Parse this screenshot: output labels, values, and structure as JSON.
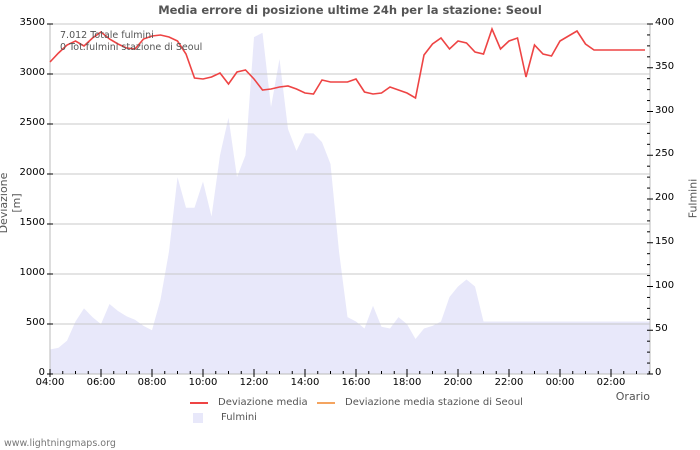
{
  "title": "Media errore di posizione ultime 24h per la stazione: Seoul",
  "info": {
    "total_strikes": "7.012 Totale fulmini",
    "station_strikes": "0 Tot.fulmini stazione di Seoul"
  },
  "axes": {
    "y_left_label": "Deviazione  [m]",
    "y_right_label": "Fulmini",
    "x_label": "Orario",
    "y_left_ticks": [
      "0",
      "500",
      "1000",
      "1500",
      "2000",
      "2500",
      "3000",
      "3500"
    ],
    "y_right_ticks": [
      "0",
      "50",
      "100",
      "150",
      "200",
      "250",
      "300",
      "350",
      "400"
    ],
    "x_ticks": [
      "04:00",
      "06:00",
      "08:00",
      "10:00",
      "12:00",
      "14:00",
      "16:00",
      "18:00",
      "20:00",
      "22:00",
      "00:00",
      "02:00"
    ]
  },
  "legend": {
    "deviation": "Deviazione media",
    "station_deviation": "Deviazione media stazione di Seoul",
    "strikes": "Fulmini"
  },
  "colors": {
    "deviation": "#ee4444",
    "station_deviation": "#f4a460",
    "strikes": "#e8e8fa",
    "grid": "#c8c8c8"
  },
  "footer": "www.lightningmaps.org",
  "chart_data": {
    "type": "line",
    "title": "Media errore di posizione ultime 24h per la stazione: Seoul",
    "xlabel": "Orario",
    "ylabel": "Deviazione [m]",
    "ylabel_right": "Fulmini",
    "ylim": [
      0,
      3500
    ],
    "ylim_right": [
      0,
      400
    ],
    "grid": true,
    "legend_position": "bottom",
    "x": [
      "04:00",
      "04:20",
      "04:40",
      "05:00",
      "05:20",
      "05:40",
      "06:00",
      "06:20",
      "06:40",
      "07:00",
      "07:20",
      "07:40",
      "08:00",
      "08:20",
      "08:40",
      "09:00",
      "09:20",
      "09:40",
      "10:00",
      "10:20",
      "10:40",
      "11:00",
      "11:20",
      "11:40",
      "12:00",
      "12:20",
      "12:40",
      "13:00",
      "13:20",
      "13:40",
      "14:00",
      "14:20",
      "14:40",
      "15:00",
      "15:20",
      "15:40",
      "16:00",
      "16:20",
      "16:40",
      "17:00",
      "17:20",
      "17:40",
      "18:00",
      "18:20",
      "18:40",
      "19:00",
      "19:20",
      "19:40",
      "20:00",
      "20:20",
      "20:40",
      "21:00",
      "21:20",
      "21:40",
      "22:00",
      "22:20",
      "22:40",
      "23:00",
      "23:20",
      "23:40",
      "00:00",
      "00:20",
      "00:40",
      "01:00",
      "01:20",
      "01:40",
      "02:00",
      "02:20",
      "02:40",
      "03:00",
      "03:20"
    ],
    "series": [
      {
        "name": "Deviazione media",
        "axis": "left",
        "type": "line",
        "values": [
          3120,
          3210,
          3290,
          3330,
          3280,
          3360,
          3420,
          3350,
          3300,
          3260,
          3250,
          3350,
          3380,
          3390,
          3370,
          3330,
          3200,
          2960,
          2950,
          2970,
          3010,
          2900,
          3020,
          3040,
          2950,
          2840,
          2850,
          2870,
          2880,
          2850,
          2810,
          2800,
          2940,
          2920,
          2920,
          2920,
          2950,
          2820,
          2800,
          2810,
          2870,
          2840,
          2810,
          2760,
          3190,
          3300,
          3360,
          3250,
          3330,
          3310,
          3220,
          3200,
          3450,
          3250,
          3330,
          3360,
          2970,
          3290,
          3200,
          3180,
          3330,
          3380,
          3430,
          3300,
          3240,
          3240,
          3240,
          3240,
          3240,
          3240,
          3240
        ]
      },
      {
        "name": "Deviazione media stazione di Seoul",
        "axis": "left",
        "type": "line",
        "values": []
      },
      {
        "name": "Fulmini",
        "axis": "right",
        "type": "area",
        "values": [
          28,
          30,
          38,
          60,
          75,
          65,
          57,
          80,
          72,
          66,
          62,
          55,
          50,
          85,
          140,
          225,
          190,
          190,
          220,
          180,
          250,
          293,
          225,
          250,
          385,
          390,
          305,
          360,
          280,
          255,
          275,
          275,
          265,
          240,
          140,
          65,
          60,
          52,
          78,
          54,
          52,
          65,
          57,
          40,
          52,
          55,
          60,
          88,
          100,
          108,
          100,
          60,
          60,
          60,
          60,
          60,
          60,
          60,
          60,
          60,
          60,
          60,
          60,
          60,
          60,
          60,
          60,
          60,
          60,
          60,
          60
        ]
      }
    ]
  }
}
